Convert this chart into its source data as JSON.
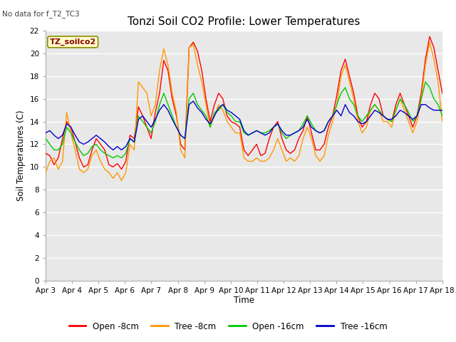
{
  "title": "Tonzi Soil CO2 Profile: Lower Temperatures",
  "subtitle": "No data for f_T2_TC3",
  "xlabel": "Time",
  "ylabel": "Soil Temperatures (C)",
  "ylim": [
    0,
    22
  ],
  "yticks": [
    0,
    2,
    4,
    6,
    8,
    10,
    12,
    14,
    16,
    18,
    20,
    22
  ],
  "xtick_labels": [
    "Apr 3",
    "Apr 4",
    "Apr 5",
    "Apr 6",
    "Apr 7",
    "Apr 8",
    "Apr 9",
    "Apr 10",
    "Apr 11",
    "Apr 12",
    "Apr 13",
    "Apr 14",
    "Apr 15",
    "Apr 16",
    "Apr 17",
    "Apr 18"
  ],
  "legend_label": "TZ_soilco2",
  "fig_bg_color": "#ffffff",
  "plot_bg_color": "#e8e8e8",
  "line_colors": {
    "open8": "#ff0000",
    "tree8": "#ff9900",
    "open16": "#00cc00",
    "tree16": "#0000cc"
  },
  "legend_entries": [
    "Open -8cm",
    "Tree -8cm",
    "Open -16cm",
    "Tree -16cm"
  ],
  "open8": [
    11.2,
    11.0,
    10.2,
    10.8,
    12.5,
    14.0,
    13.5,
    12.2,
    10.8,
    10.0,
    10.2,
    11.5,
    12.5,
    12.0,
    11.5,
    10.2,
    10.0,
    10.3,
    9.8,
    10.5,
    12.8,
    12.5,
    15.3,
    14.5,
    13.5,
    12.5,
    14.8,
    16.5,
    19.4,
    18.5,
    16.0,
    14.5,
    12.0,
    11.5,
    20.5,
    21.0,
    20.2,
    18.5,
    16.0,
    14.0,
    15.5,
    16.5,
    16.0,
    14.5,
    14.0,
    13.8,
    13.5,
    11.5,
    11.0,
    11.5,
    12.0,
    11.0,
    11.2,
    12.5,
    13.5,
    14.0,
    12.5,
    11.5,
    11.2,
    11.5,
    12.5,
    13.2,
    14.5,
    13.0,
    11.5,
    11.5,
    12.0,
    13.5,
    14.5,
    16.3,
    18.5,
    19.5,
    18.0,
    16.5,
    14.5,
    13.5,
    14.0,
    15.5,
    16.5,
    16.0,
    14.5,
    14.2,
    14.0,
    15.5,
    16.5,
    15.5,
    14.5,
    13.5,
    14.5,
    16.5,
    19.5,
    21.5,
    20.5,
    18.5,
    16.5
  ],
  "tree8": [
    9.5,
    10.5,
    10.8,
    9.8,
    10.5,
    14.8,
    13.0,
    11.5,
    9.8,
    9.5,
    9.8,
    11.0,
    11.5,
    10.5,
    9.8,
    9.5,
    9.0,
    9.5,
    8.8,
    9.5,
    12.0,
    11.5,
    17.5,
    17.0,
    16.5,
    14.5,
    15.5,
    18.5,
    20.4,
    19.0,
    16.5,
    14.8,
    11.5,
    10.8,
    20.5,
    20.8,
    19.0,
    17.5,
    15.5,
    13.5,
    14.5,
    15.5,
    15.0,
    14.0,
    13.5,
    13.0,
    13.0,
    10.8,
    10.5,
    10.5,
    10.8,
    10.5,
    10.5,
    10.8,
    11.5,
    12.5,
    11.5,
    10.5,
    10.8,
    10.5,
    11.0,
    12.5,
    13.5,
    12.5,
    11.0,
    10.5,
    11.0,
    12.8,
    14.0,
    15.5,
    18.0,
    19.0,
    17.5,
    16.0,
    14.0,
    13.0,
    13.5,
    15.0,
    15.5,
    15.0,
    14.0,
    14.0,
    13.5,
    15.0,
    16.0,
    15.0,
    14.0,
    13.0,
    14.0,
    16.0,
    19.0,
    21.0,
    19.5,
    17.5,
    14.0
  ],
  "open16": [
    12.5,
    12.0,
    11.5,
    11.5,
    12.0,
    13.5,
    13.0,
    12.2,
    11.5,
    11.0,
    11.2,
    11.8,
    12.0,
    11.5,
    11.2,
    11.0,
    10.8,
    11.0,
    10.8,
    11.2,
    12.5,
    12.2,
    14.5,
    14.0,
    13.5,
    13.0,
    14.0,
    15.5,
    16.5,
    15.5,
    14.5,
    13.5,
    12.8,
    12.5,
    16.0,
    16.5,
    15.5,
    15.0,
    14.5,
    13.5,
    14.8,
    15.0,
    15.5,
    14.8,
    14.5,
    14.0,
    14.0,
    13.0,
    12.8,
    13.0,
    13.2,
    13.0,
    13.0,
    13.2,
    13.5,
    13.8,
    13.0,
    12.5,
    12.8,
    13.0,
    13.2,
    13.8,
    14.5,
    13.8,
    13.2,
    13.0,
    13.2,
    14.0,
    14.5,
    15.5,
    16.5,
    17.0,
    16.0,
    15.5,
    14.5,
    14.0,
    14.5,
    15.0,
    15.5,
    15.0,
    14.5,
    14.2,
    14.0,
    15.0,
    16.0,
    15.5,
    14.8,
    14.0,
    14.5,
    16.0,
    17.5,
    17.0,
    16.0,
    15.5,
    14.5
  ],
  "tree16": [
    13.0,
    13.2,
    12.8,
    12.5,
    12.8,
    13.8,
    13.5,
    12.8,
    12.2,
    12.0,
    12.2,
    12.5,
    12.8,
    12.5,
    12.2,
    11.8,
    11.5,
    11.8,
    11.5,
    11.8,
    12.5,
    12.2,
    14.2,
    14.5,
    14.0,
    13.5,
    14.2,
    15.0,
    15.5,
    15.0,
    14.2,
    13.5,
    12.8,
    12.5,
    15.5,
    15.8,
    15.2,
    14.8,
    14.2,
    13.8,
    14.5,
    15.2,
    15.5,
    15.0,
    14.8,
    14.5,
    14.2,
    13.2,
    12.8,
    13.0,
    13.2,
    13.0,
    12.8,
    13.0,
    13.5,
    13.8,
    13.2,
    12.8,
    12.8,
    13.0,
    13.2,
    13.5,
    14.2,
    13.5,
    13.2,
    13.0,
    13.2,
    14.0,
    14.5,
    15.0,
    14.5,
    15.5,
    14.8,
    14.5,
    14.0,
    13.8,
    14.0,
    14.5,
    15.0,
    14.8,
    14.5,
    14.2,
    14.2,
    14.5,
    15.0,
    14.8,
    14.5,
    14.2,
    14.5,
    15.5,
    15.5,
    15.2,
    15.0,
    15.0,
    15.0
  ]
}
